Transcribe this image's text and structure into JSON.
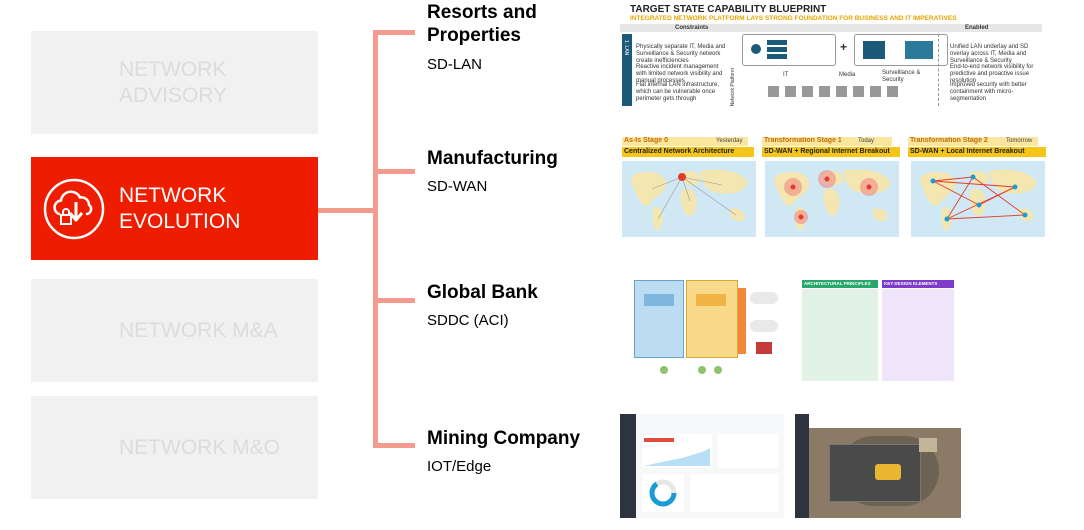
{
  "left_menu": [
    {
      "label": "NETWORK\nADVISORY",
      "active": false
    },
    {
      "label": "NETWORK\nEVOLUTION",
      "active": true
    },
    {
      "label": "NETWORK M&A",
      "active": false
    },
    {
      "label": "NETWORK M&O",
      "active": false
    }
  ],
  "categories": [
    {
      "title": "Resorts and\nProperties",
      "subtitle": "SD-LAN"
    },
    {
      "title": "Manufacturing",
      "subtitle": "SD-WAN"
    },
    {
      "title": "Global Bank",
      "subtitle": "SDDC (ACI)"
    },
    {
      "title": "Mining Company",
      "subtitle": "IOT/Edge"
    }
  ],
  "sdlan_thumb": {
    "title": "TARGET STATE CAPABILITY BLUEPRINT",
    "subtitle": "INTEGRATED NETWORK PLATFORM LAYS STRONG FOUNDATION FOR BUSINESS AND IT IMPERATIVES",
    "col_left": "Constraints",
    "col_right": "Enabled",
    "left_bullets": [
      "Physically separate IT, Media and Surveillance & Security network create inefficiencies",
      "Reactive incident management with limited network visibility and manual processes",
      "Flat internal LAN infrastructure, which can be vulnerable once perimeter gets through"
    ],
    "right_bullets": [
      "Unified LAN underlay and SD overlay across IT, Media and Surveillance & Security",
      "End-to-end network visibility for predictive and proactive issue resolution",
      "Improved security with better containment with micro-segmentation"
    ],
    "side_tab": "1. LAN",
    "side_label": "Network Platform",
    "icon_labels": [
      "IT",
      "Media",
      "Surveillance & Security"
    ]
  },
  "sdwan_thumb": {
    "stages": [
      {
        "stage": "As-Is Stage 0",
        "tag": "Yesterday",
        "desc": "Centralized Network Architecture"
      },
      {
        "stage": "Transformation Stage 1",
        "tag": "Today",
        "desc": "SD-WAN + Regional Internet Breakout"
      },
      {
        "stage": "Transformation Stage 2",
        "tag": "Tomorrow",
        "desc": "SD-WAN + Local Internet Breakout"
      }
    ]
  },
  "sddc_thumb": {
    "panel_left": "ARCHITECTURAL PRINCIPLES",
    "panel_right": "KEY DESIGN ELEMENTS"
  },
  "colors": {
    "accent": "#ee1d00",
    "connector": "#f59a8f",
    "inactive_box": "#f1f1f1",
    "inactive_text": "#dcdcdc"
  }
}
